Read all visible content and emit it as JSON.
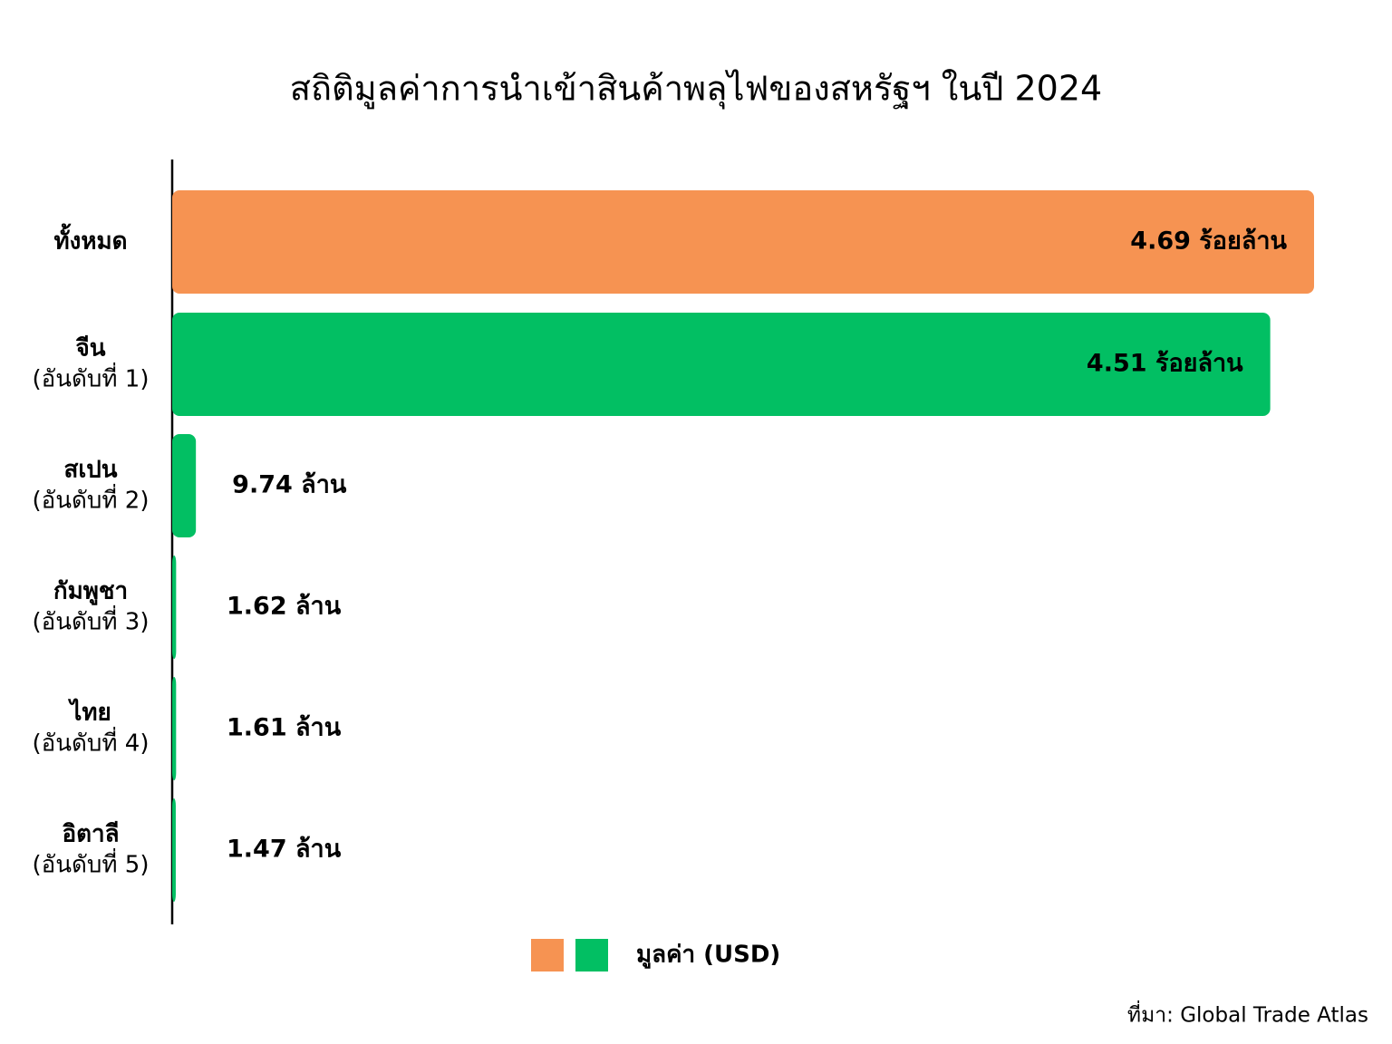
{
  "chart_data": {
    "type": "bar",
    "orientation": "horizontal",
    "title": "สถิติมูลค่าการนำเข้าสินค้าพลุไฟของสหรัฐฯ ในปี 2024",
    "categories": [
      "ทั้งหมด",
      "จีน",
      "สเปน",
      "กัมพูชา",
      "ไทย",
      "อิตาลี"
    ],
    "category_notes": [
      null,
      "(อันดับที่ 1)",
      "(อันดับที่ 2)",
      "(อันดับที่ 3)",
      "(อันดับที่ 4)",
      "(อันดับที่ 5)"
    ],
    "values": [
      469000000,
      451000000,
      9740000,
      1620000,
      1610000,
      1470000
    ],
    "value_labels": [
      "4.69 ร้อยล้าน",
      "4.51 ร้อยล้าน",
      "9.74 ล้าน",
      "1.62 ล้าน",
      "1.61 ล้าน",
      "1.47 ล้าน"
    ],
    "colors": [
      "#f69352",
      "#02bf63",
      "#02bf63",
      "#02bf63",
      "#02bf63",
      "#02bf63"
    ],
    "legend": {
      "label": "มูลค่า (USD)",
      "colors": [
        "#f69352",
        "#02bf63"
      ]
    },
    "source": "ที่มา: Global Trade Atlas"
  }
}
